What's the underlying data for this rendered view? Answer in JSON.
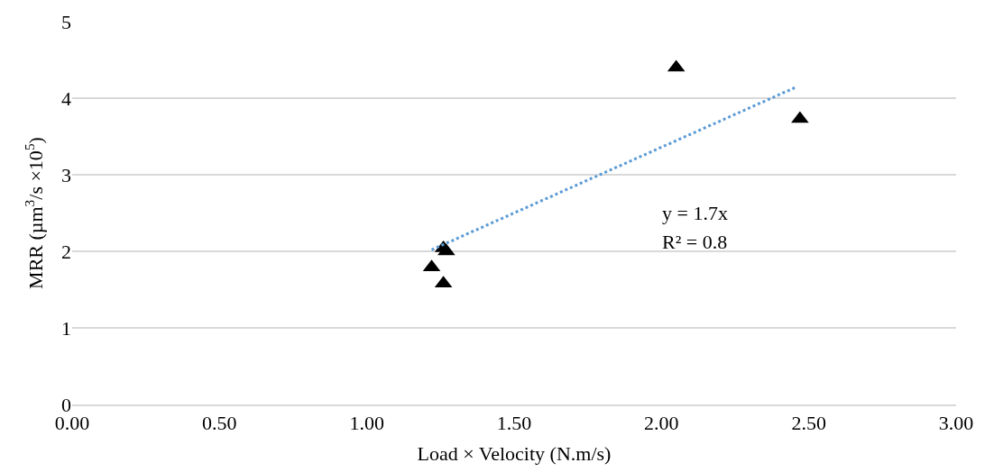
{
  "chart_data": {
    "type": "scatter",
    "xlabel": "Load × Velocity (N.m/s)",
    "ylabel": "MRR (µm$^{3}$/s ×10$^{5}$)",
    "xlim": [
      0,
      3
    ],
    "xticks": [
      {
        "value": 0,
        "label": "0.00"
      },
      {
        "value": 0.5,
        "label": "0.50"
      },
      {
        "value": 1,
        "label": "1.00"
      },
      {
        "value": 1.5,
        "label": "1.50"
      },
      {
        "value": 2,
        "label": "2.00"
      },
      {
        "value": 2.5,
        "label": "2.50"
      },
      {
        "value": 3,
        "label": "3.00"
      }
    ],
    "ylim": [
      0,
      5
    ],
    "yticks": [
      0,
      1,
      2,
      3,
      4,
      5
    ],
    "grid": "y",
    "series": [
      {
        "color": "#000000",
        "marker": "triangle",
        "x": [
          1.22,
          1.26,
          1.26,
          1.27,
          2.05,
          2.47
        ],
        "values": [
          1.79,
          1.58,
          2.04,
          2.0,
          4.4,
          3.73
        ]
      },
      {
        "type": "line",
        "color": "#5b9bd5",
        "line_style": "dotted",
        "marker": "none",
        "x": [
          1.22,
          2.46
        ],
        "values": [
          2.02,
          4.15
        ]
      }
    ],
    "annotations": [
      "y = 1.7x",
      "R² = 0.8"
    ]
  }
}
